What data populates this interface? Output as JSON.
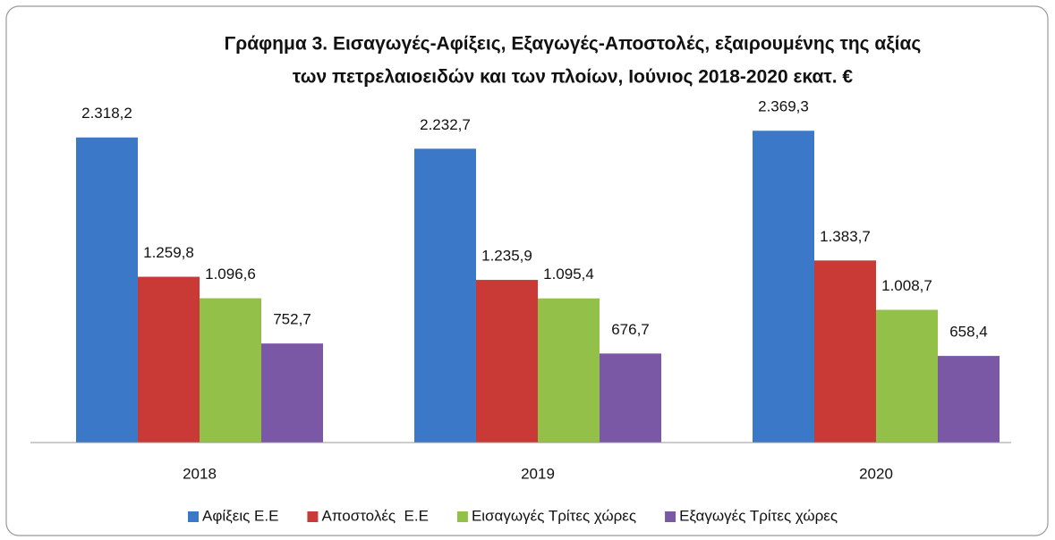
{
  "chart_data": {
    "type": "bar",
    "title": [
      "Γράφημα 3. Εισαγωγές-Αφίξεις, Εξαγωγές-Αποστολές, εξαιρουμένης της αξίας",
      "των πετρελαιοειδών και των πλοίων, Ιούνιος 2018-2020 εκατ. €"
    ],
    "categories": [
      "2018",
      "2019",
      "2020"
    ],
    "series": [
      {
        "name": "Αφίξεις Ε.Ε",
        "color": "#3b78c8",
        "values": [
          2318.2,
          2232.7,
          2369.3
        ],
        "value_labels": [
          "2.318,2",
          "2.232,7",
          "2.369,3"
        ]
      },
      {
        "name": "Αποστολές  Ε.Ε",
        "color": "#c93a37",
        "values": [
          1259.8,
          1235.9,
          1383.7
        ],
        "value_labels": [
          "1.259,8",
          "1.235,9",
          "1.383,7"
        ]
      },
      {
        "name": "Εισαγωγές Τρίτες χώρες",
        "color": "#93c049",
        "values": [
          1096.6,
          1095.4,
          1008.7
        ],
        "value_labels": [
          "1.096,6",
          "1.095,4",
          "1.008,7"
        ]
      },
      {
        "name": "Εξαγωγές Τρίτες χώρες",
        "color": "#7b58a6",
        "values": [
          752.7,
          676.7,
          658.4
        ],
        "value_labels": [
          "752,7",
          "676,7",
          "658,4"
        ]
      }
    ],
    "ylim": [
      0,
      2500
    ],
    "legend": "bottom"
  }
}
